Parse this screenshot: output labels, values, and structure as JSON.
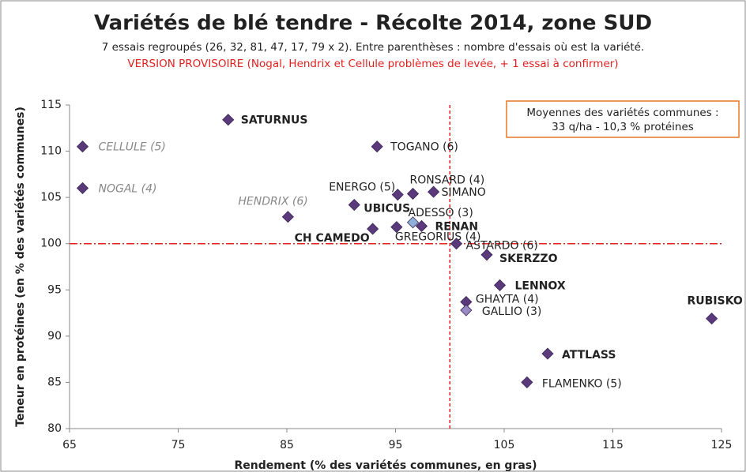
{
  "chart_data": {
    "type": "scatter",
    "title": "Variétés de blé tendre - Récolte 2014, zone SUD",
    "subtitle": "7 essais regroupés (26, 32, 81, 47, 17, 79 x 2).  Entre parenthèses : nombre d'essais où est la variété.",
    "note": "VERSION PROVISOIRE (Nogal, Hendrix et Cellule problèmes de levée,  + 1 essai à confirmer)",
    "xlabel": "Rendement (% des variétés communes, en gras)",
    "ylabel": "Teneur en protéines (en % des variétés communes)",
    "annotation": [
      "Moyennes des variétés communes :",
      "33 q/ha  -  10,3 % protéines"
    ],
    "xlim": [
      65,
      125
    ],
    "xticks": [
      65,
      75,
      85,
      95,
      105,
      115,
      125
    ],
    "ylim": [
      80,
      115
    ],
    "yticks": [
      80,
      85,
      90,
      95,
      100,
      105,
      110,
      115
    ],
    "ref_lines": {
      "x": 100,
      "y": 100,
      "color": "#e02020"
    },
    "points": [
      {
        "label": "SATURNUS",
        "x": 79.6,
        "y": 113.4,
        "color": "#5b3a7c",
        "style": "bold"
      },
      {
        "label": "CELLULE (5)",
        "x": 66.2,
        "y": 110.5,
        "color": "#5b3a7c",
        "style": "italic"
      },
      {
        "label": "NOGAL (4)",
        "x": 66.2,
        "y": 106.0,
        "color": "#5b3a7c",
        "style": "italic"
      },
      {
        "label": "TOGANO (6)",
        "x": 93.3,
        "y": 110.5,
        "color": "#5b3a7c",
        "style": "normal"
      },
      {
        "label": "HENDRIX (6)",
        "x": 85.1,
        "y": 102.9,
        "color": "#5b3a7c",
        "style": "italic"
      },
      {
        "label": "ENERGO (5)",
        "x": 95.2,
        "y": 105.3,
        "color": "#5b3a7c",
        "style": "normal"
      },
      {
        "label": "RONSARD (4)",
        "x": 96.6,
        "y": 105.4,
        "color": "#5b3a7c",
        "style": "normal"
      },
      {
        "label": "SIMANO",
        "x": 98.5,
        "y": 105.6,
        "color": "#5b3a7c",
        "style": "normal"
      },
      {
        "label": "UBICUS",
        "x": 91.2,
        "y": 104.2,
        "color": "#5b3a7c",
        "style": "bold"
      },
      {
        "label": "ADESSO (3)",
        "x": 96.6,
        "y": 102.3,
        "color": "#8fb0d8",
        "style": "normal"
      },
      {
        "label": "RENAN",
        "x": 97.4,
        "y": 101.9,
        "color": "#5b3a7c",
        "style": "bold"
      },
      {
        "label": "CH CAMEDO",
        "x": 92.9,
        "y": 101.6,
        "color": "#5b3a7c",
        "style": "bold"
      },
      {
        "label": "GREGORIUS (4)",
        "x": 95.1,
        "y": 101.8,
        "color": "#5b3a7c",
        "style": "normal"
      },
      {
        "label": "ASTARDO (6)",
        "x": 100.6,
        "y": 100.0,
        "color": "#5b3a7c",
        "style": "normal"
      },
      {
        "label": "SKERZZO",
        "x": 103.4,
        "y": 98.8,
        "color": "#5b3a7c",
        "style": "bold"
      },
      {
        "label": "LENNOX",
        "x": 104.6,
        "y": 95.5,
        "color": "#5b3a7c",
        "style": "bold"
      },
      {
        "label": "GHAYTA (4)",
        "x": 101.5,
        "y": 93.7,
        "color": "#5b3a7c",
        "style": "normal"
      },
      {
        "label": "GALLIO (3)",
        "x": 101.5,
        "y": 92.8,
        "color": "#9a8ac4",
        "style": "normal"
      },
      {
        "label": "RUBISKO",
        "x": 124.1,
        "y": 91.9,
        "color": "#5b3a7c",
        "style": "bold"
      },
      {
        "label": "ATTLASS",
        "x": 109.0,
        "y": 88.1,
        "color": "#5b3a7c",
        "style": "bold"
      },
      {
        "label": "FLAMENKO (5)",
        "x": 107.1,
        "y": 85.0,
        "color": "#5b3a7c",
        "style": "normal"
      }
    ]
  }
}
